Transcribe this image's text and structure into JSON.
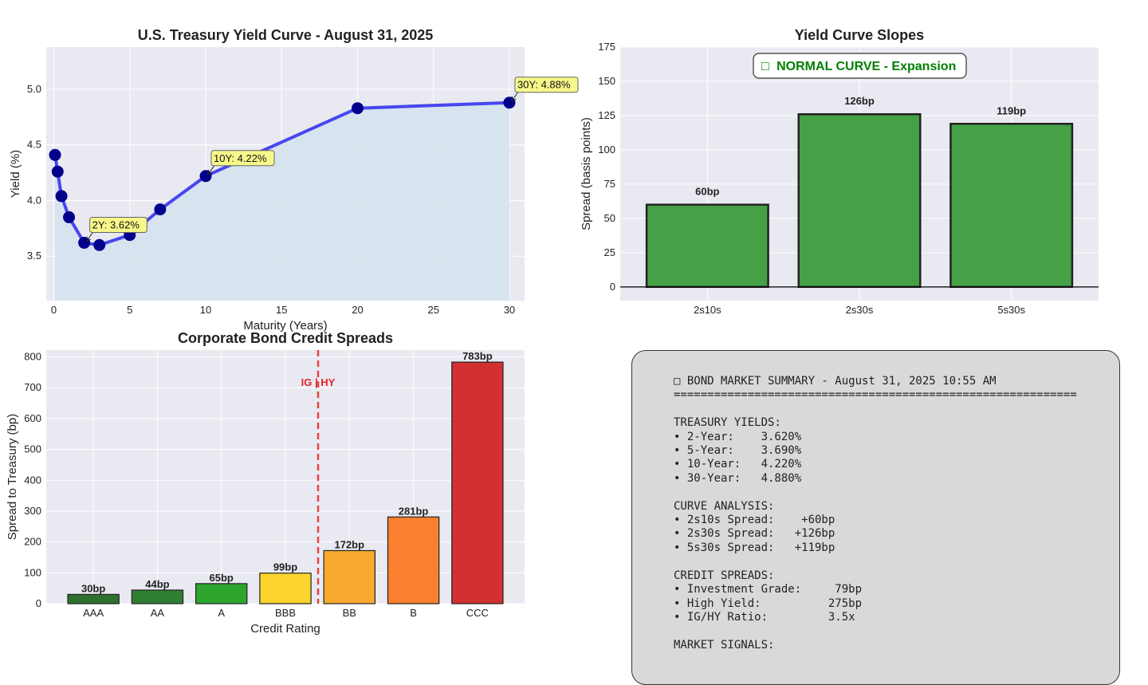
{
  "chart_data": [
    {
      "type": "line",
      "title": "U.S. Treasury Yield Curve - August 31, 2025",
      "xlabel": "Maturity (Years)",
      "ylabel": "Yield (%)",
      "xlim": [
        -0.5,
        31
      ],
      "ylim": [
        3.1,
        5.38
      ],
      "xticks": [
        0,
        5,
        10,
        15,
        20,
        25,
        30
      ],
      "yticks": [
        3.5,
        4.0,
        4.5,
        5.0
      ],
      "ytick_labels": [
        "3.5",
        "4.0",
        "4.5",
        "5.0"
      ],
      "grid": true,
      "colors": {
        "line": "#4747ef",
        "marker": "#00008b",
        "fill": "#d6e4ee",
        "annotation": "#f7f78a"
      },
      "series": [
        {
          "x": [
            0.08,
            0.25,
            0.5,
            1,
            2,
            3,
            5,
            7,
            10,
            20,
            30
          ],
          "y": [
            4.41,
            4.26,
            4.04,
            3.85,
            3.62,
            3.6,
            3.69,
            3.92,
            4.22,
            4.83,
            4.88
          ]
        }
      ],
      "annotations": [
        {
          "text": "2Y: 3.62%",
          "x": 2,
          "y": 3.62
        },
        {
          "text": "10Y: 4.22%",
          "x": 10,
          "y": 4.22
        },
        {
          "text": "30Y: 4.88%",
          "x": 30,
          "y": 4.88
        }
      ]
    },
    {
      "type": "bar",
      "title": "Yield Curve Slopes",
      "ylabel": "Spread (basis points)",
      "categories": [
        "2s10s",
        "2s30s",
        "5s30s"
      ],
      "values": [
        60,
        126,
        119
      ],
      "value_labels": [
        "60bp",
        "126bp",
        "119bp"
      ],
      "ylim": [
        -10,
        175
      ],
      "yticks": [
        0,
        25,
        50,
        75,
        100,
        125,
        150,
        175
      ],
      "grid": true,
      "badge": {
        "icon": "□",
        "text": "NORMAL CURVE - Expansion",
        "color": "#008000"
      },
      "colors": {
        "bar": "#46a046",
        "edge": "#222222"
      }
    },
    {
      "type": "bar",
      "title": "Corporate Bond Credit Spreads",
      "xlabel": "Credit Rating",
      "ylabel": "Spread to Treasury (bp)",
      "categories": [
        "AAA",
        "AA",
        "A",
        "BBB",
        "BB",
        "B",
        "CCC"
      ],
      "values": [
        30,
        44,
        65,
        99,
        172,
        281,
        783
      ],
      "value_labels": [
        "30bp",
        "44bp",
        "65bp",
        "99bp",
        "172bp",
        "281bp",
        "783bp"
      ],
      "colors": [
        "#2e7030",
        "#2f7f32",
        "#2ea62e",
        "#fad32f",
        "#f9a92e",
        "#f8802f",
        "#d23032"
      ],
      "ylim": [
        0,
        822
      ],
      "yticks": [
        0,
        100,
        200,
        300,
        400,
        500,
        600,
        700,
        800
      ],
      "grid": true,
      "divider": {
        "label": "IG | HY",
        "color": "#e53333"
      }
    }
  ],
  "summary": {
    "icon": "□",
    "lines": [
      "□ BOND MARKET SUMMARY - August 31, 2025 10:55 AM",
      "============================================================",
      "",
      "TREASURY YIELDS:",
      "• 2-Year:    3.620%",
      "• 5-Year:    3.690%",
      "• 10-Year:   4.220%",
      "• 30-Year:   4.880%",
      "",
      "CURVE ANALYSIS:",
      "• 2s10s Spread:    +60bp",
      "• 2s30s Spread:   +126bp",
      "• 5s30s Spread:   +119bp",
      "",
      "CREDIT SPREADS:",
      "• Investment Grade:     79bp",
      "• High Yield:          275bp",
      "• IG/HY Ratio:         3.5x",
      "",
      "MARKET SIGNALS:"
    ]
  }
}
